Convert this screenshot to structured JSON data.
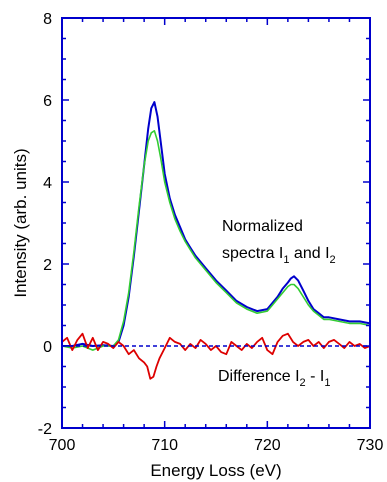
{
  "chart_data": {
    "type": "line",
    "title": "",
    "xlabel": "Energy Loss (eV)",
    "ylabel": "Intensity (arb. units)",
    "xlim": [
      700,
      730
    ],
    "ylim": [
      -2,
      8
    ],
    "x_ticks": [
      "700",
      "710",
      "720",
      "730"
    ],
    "y_ticks": [
      "-2",
      "0",
      "2",
      "4",
      "6",
      "8"
    ],
    "grid": false,
    "frame_color": "#0000cc",
    "baseline": {
      "y": 0,
      "style": "dashed",
      "color": "#0000cc"
    },
    "series": [
      {
        "name": "",
        "role": "I2",
        "color": "#0000cc",
        "x": [
          700,
          701,
          702,
          703,
          704,
          705,
          705.5,
          706,
          706.5,
          707,
          707.5,
          708,
          708.4,
          708.7,
          709,
          709.3,
          709.6,
          710,
          710.5,
          711,
          711.5,
          712,
          712.5,
          713,
          714,
          715,
          716,
          717,
          718,
          719,
          720,
          720.5,
          721,
          721.5,
          722,
          722.3,
          722.6,
          723,
          723.5,
          724,
          724.5,
          725,
          725.5,
          726,
          727,
          728,
          729,
          730
        ],
        "y": [
          0.0,
          0.0,
          0.05,
          0.0,
          0.02,
          0.0,
          0.1,
          0.5,
          1.2,
          2.2,
          3.3,
          4.4,
          5.3,
          5.8,
          5.95,
          5.6,
          5.0,
          4.2,
          3.6,
          3.2,
          2.9,
          2.6,
          2.4,
          2.2,
          1.9,
          1.6,
          1.35,
          1.1,
          0.95,
          0.85,
          0.9,
          1.05,
          1.2,
          1.4,
          1.55,
          1.65,
          1.7,
          1.6,
          1.35,
          1.1,
          0.9,
          0.8,
          0.7,
          0.7,
          0.65,
          0.6,
          0.6,
          0.55
        ]
      },
      {
        "name": "",
        "role": "I1",
        "color": "#33cc33",
        "x": [
          700,
          701,
          702,
          703,
          704,
          705,
          705.5,
          706,
          706.5,
          707,
          707.5,
          708,
          708.4,
          708.7,
          709,
          709.3,
          709.6,
          710,
          710.5,
          711,
          711.5,
          712,
          712.5,
          713,
          714,
          715,
          716,
          717,
          718,
          719,
          720,
          720.5,
          721,
          721.5,
          722,
          722.3,
          722.6,
          723,
          723.5,
          724,
          724.5,
          725,
          725.5,
          726,
          727,
          728,
          729,
          730
        ],
        "y": [
          0.0,
          -0.05,
          0.0,
          -0.1,
          0.0,
          0.0,
          0.15,
          0.6,
          1.3,
          2.3,
          3.4,
          4.4,
          5.0,
          5.2,
          5.25,
          5.0,
          4.6,
          4.0,
          3.5,
          3.1,
          2.8,
          2.55,
          2.35,
          2.15,
          1.85,
          1.55,
          1.3,
          1.05,
          0.9,
          0.8,
          0.85,
          1.0,
          1.15,
          1.3,
          1.45,
          1.5,
          1.5,
          1.4,
          1.2,
          1.0,
          0.85,
          0.75,
          0.65,
          0.65,
          0.6,
          0.55,
          0.55,
          0.5
        ]
      },
      {
        "name": "",
        "role": "difference",
        "color": "#dd0000",
        "x": [
          700,
          700.5,
          701,
          701.5,
          702,
          702.5,
          703,
          703.5,
          704,
          704.5,
          705,
          705.5,
          706,
          706.5,
          707,
          707.5,
          708,
          708.3,
          708.6,
          708.9,
          709.2,
          709.5,
          710,
          710.5,
          711,
          711.5,
          712,
          712.5,
          713,
          713.5,
          714,
          714.5,
          715,
          715.5,
          716,
          716.5,
          717,
          717.5,
          718,
          718.5,
          719,
          719.5,
          720,
          720.5,
          721,
          721.5,
          722,
          722.5,
          723,
          723.5,
          724,
          724.5,
          725,
          725.5,
          726,
          726.5,
          727,
          727.5,
          728,
          728.5,
          729,
          729.5,
          730
        ],
        "y": [
          0.1,
          0.2,
          -0.1,
          0.15,
          0.3,
          -0.05,
          0.2,
          -0.1,
          0.1,
          0.05,
          -0.05,
          0.1,
          0.0,
          -0.2,
          -0.1,
          -0.3,
          -0.4,
          -0.5,
          -0.8,
          -0.75,
          -0.5,
          -0.3,
          -0.05,
          0.2,
          0.1,
          0.05,
          -0.1,
          0.05,
          -0.05,
          0.15,
          0.05,
          -0.1,
          0.0,
          -0.15,
          -0.2,
          0.1,
          0.0,
          -0.1,
          0.05,
          -0.05,
          0.1,
          0.2,
          -0.1,
          -0.2,
          0.1,
          0.25,
          0.3,
          0.1,
          0.0,
          0.1,
          0.15,
          0.0,
          0.1,
          -0.05,
          0.1,
          0.15,
          0.05,
          -0.05,
          0.1,
          0.0,
          0.05,
          -0.05,
          0.0
        ]
      }
    ],
    "annotations": {
      "normalized_line1": "Normalized",
      "normalized_line2_a": "spectra I",
      "normalized_sub_a": "1",
      "normalized_line2_b": " and I",
      "normalized_sub_b": "2",
      "difference_a": "Difference I",
      "difference_sub_a": "2",
      "difference_b": " - I",
      "difference_sub_b": "1"
    }
  }
}
